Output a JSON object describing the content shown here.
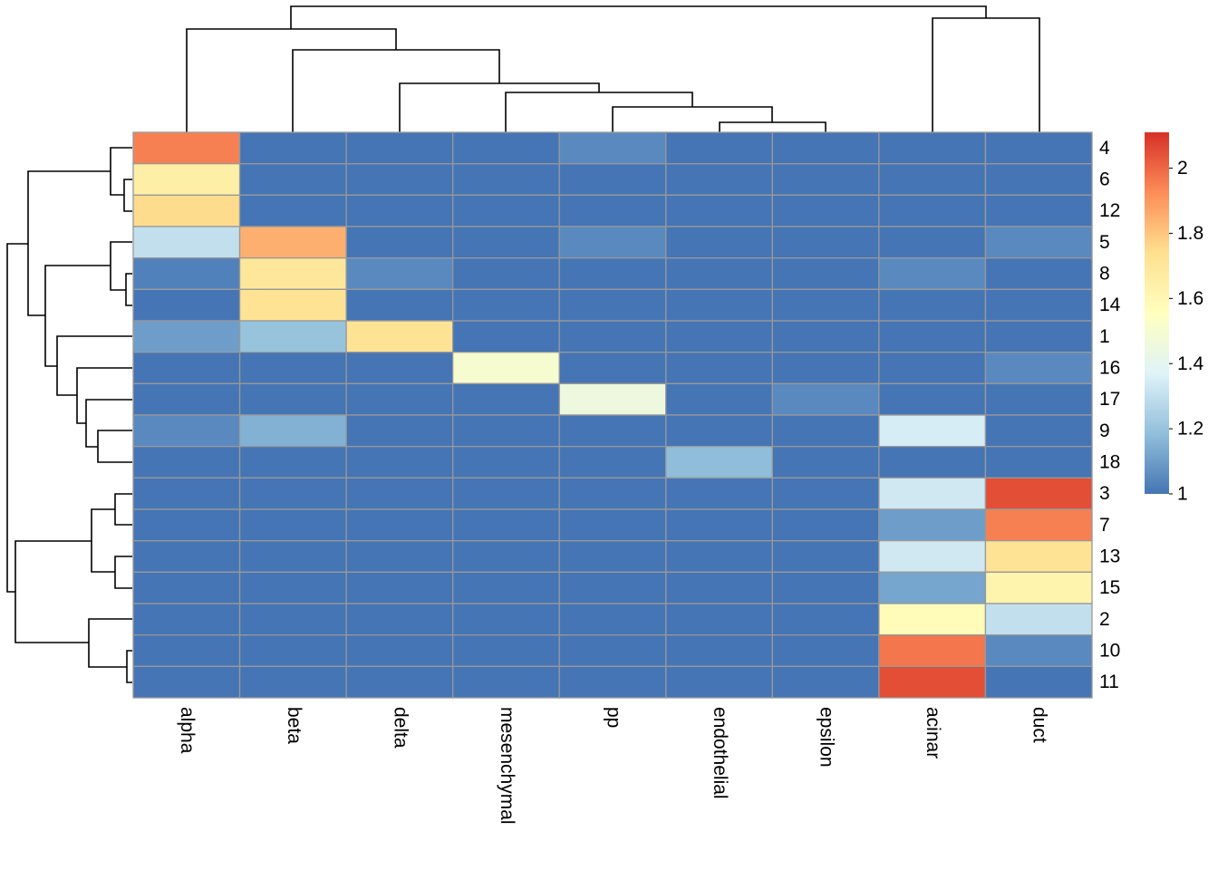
{
  "chart_data": {
    "type": "heatmap",
    "columns": [
      "alpha",
      "beta",
      "delta",
      "mesenchymal",
      "pp",
      "endothelial",
      "epsilon",
      "acinar",
      "duct"
    ],
    "rows": [
      "4",
      "6",
      "12",
      "5",
      "8",
      "14",
      "1",
      "16",
      "17",
      "9",
      "18",
      "3",
      "7",
      "13",
      "15",
      "2",
      "10",
      "11"
    ],
    "values": [
      [
        1.95,
        1,
        1,
        1,
        1.05,
        1,
        1,
        1,
        1
      ],
      [
        1.65,
        1,
        1,
        1,
        1,
        1,
        1,
        1,
        1
      ],
      [
        1.75,
        1,
        1,
        1,
        1,
        1,
        1,
        1,
        1
      ],
      [
        1.3,
        1.85,
        1,
        1,
        1.05,
        1,
        1,
        1,
        1.05
      ],
      [
        1.03,
        1.7,
        1.05,
        1,
        1,
        1,
        1,
        1.05,
        1
      ],
      [
        1,
        1.72,
        1,
        1,
        1,
        1,
        1,
        1,
        1
      ],
      [
        1.1,
        1.2,
        1.72,
        1,
        1,
        1,
        1,
        1,
        1
      ],
      [
        1,
        1,
        1,
        1.5,
        1,
        1,
        1,
        1,
        1.05
      ],
      [
        1,
        1,
        1,
        1,
        1.45,
        1,
        1.05,
        1,
        1
      ],
      [
        1.05,
        1.15,
        1,
        1,
        1,
        1,
        1,
        1.35,
        1
      ],
      [
        1,
        1,
        1,
        1,
        1,
        1.18,
        1,
        1,
        1
      ],
      [
        1,
        1,
        1,
        1,
        1,
        1,
        1,
        1.33,
        2.05
      ],
      [
        1,
        1,
        1,
        1,
        1,
        1,
        1,
        1.1,
        1.95
      ],
      [
        1,
        1,
        1,
        1,
        1,
        1,
        1,
        1.33,
        1.72
      ],
      [
        1,
        1,
        1,
        1,
        1,
        1,
        1,
        1.12,
        1.62
      ],
      [
        1,
        1,
        1,
        1,
        1,
        1,
        1,
        1.58,
        1.3
      ],
      [
        1,
        1,
        1,
        1,
        1,
        1,
        1,
        1.97,
        1.05
      ],
      [
        1,
        1,
        1,
        1,
        1,
        1,
        1,
        2.05,
        1
      ]
    ],
    "colors": [
      "#4575B4",
      "#91BFDB",
      "#E0F3F8",
      "#FFFFBF",
      "#FEE090",
      "#FC8D59",
      "#D73027"
    ],
    "ylim": [
      1,
      2.11
    ],
    "yticks": [
      1,
      1.2,
      1.4,
      1.6,
      1.8,
      2
    ]
  }
}
